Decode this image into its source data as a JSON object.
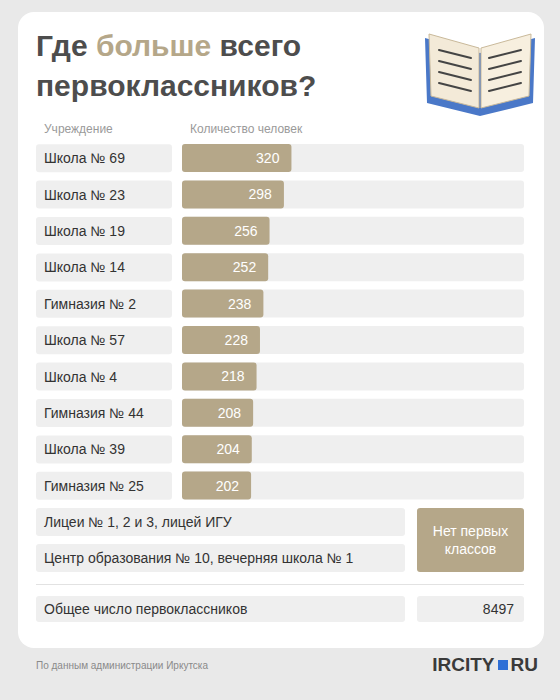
{
  "chart_data": {
    "type": "bar",
    "orientation": "horizontal",
    "title": "Где больше всего первоклассников?",
    "y_label": "Учреждение",
    "x_label": "Количество человек",
    "categories": [
      "Школа № 69",
      "Школа № 23",
      "Школа № 19",
      "Школа № 14",
      "Гимназия № 2",
      "Школа № 57",
      "Школа № 4",
      "Гимназия № 44",
      "Школа № 39",
      "Гимназия № 25"
    ],
    "values": [
      320,
      298,
      256,
      252,
      238,
      228,
      218,
      208,
      204,
      202
    ],
    "color": "#b5a789",
    "xlim": [
      0,
      1000
    ],
    "xticks": [],
    "tick_labels": false,
    "grid": false,
    "data_labels": true
  },
  "no_first_classes": {
    "rows": [
      "Лицеи № 1, 2 и 3, лицей ИГУ",
      "Центр образования № 10, вечерняя школа № 1"
    ],
    "label": "Нет первых классов"
  },
  "total": {
    "label": "Общее число первоклассников",
    "value": 8497
  },
  "source": "По данным администрации Иркутска",
  "brand": [
    "IRCITY",
    "RU"
  ]
}
